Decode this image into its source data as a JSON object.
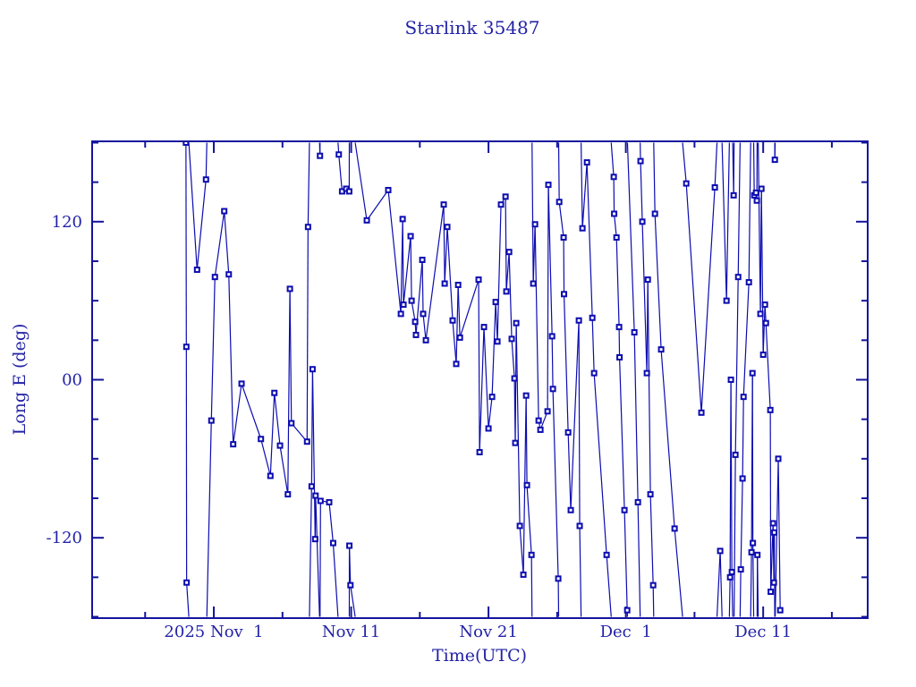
{
  "colors": {
    "text": "#2323a8",
    "data": "#0c0cb0",
    "frame": "#14149e",
    "background": "#ffffff"
  },
  "chart_data": {
    "type": "line",
    "title": "Starlink 35487",
    "xlabel": "Time(UTC)",
    "ylabel": "Long E (deg)",
    "x_unit": "days since 2025 Nov 1 00:00 UTC",
    "xlim": [
      -8.86,
      47.61
    ],
    "ylim": [
      -181,
      181
    ],
    "grid": false,
    "legend": "none",
    "marker": "open-square",
    "line_style": "solid",
    "wrap_at": [
      -180,
      180
    ],
    "x_major_ticks": [
      {
        "day": 0,
        "label": "2025 Nov  1"
      },
      {
        "day": 10,
        "label": "Nov 11"
      },
      {
        "day": 20,
        "label": "Nov 21"
      },
      {
        "day": 30,
        "label": "Dec  1"
      },
      {
        "day": 40,
        "label": "Dec 11"
      }
    ],
    "x_minor_tick_days": [
      -5,
      5,
      15,
      25,
      35,
      45
    ],
    "y_major_ticks": [
      {
        "value": 120,
        "label": "120"
      },
      {
        "value": 0,
        "label": "00"
      },
      {
        "value": -120,
        "label": "-120"
      }
    ],
    "y_minor_tick_step": 30,
    "points": [
      [
        -2.03,
        180
      ],
      [
        -2.0,
        25
      ],
      [
        -1.98,
        -154
      ],
      [
        -1.22,
        83.5
      ],
      [
        -0.57,
        152
      ],
      [
        -0.18,
        -31
      ],
      [
        0.08,
        78
      ],
      [
        0.76,
        128
      ],
      [
        1.09,
        80
      ],
      [
        1.41,
        -49
      ],
      [
        2.02,
        -3
      ],
      [
        3.43,
        -45
      ],
      [
        4.12,
        -73
      ],
      [
        4.41,
        -10
      ],
      [
        4.82,
        -50
      ],
      [
        5.39,
        -87
      ],
      [
        5.54,
        69
      ],
      [
        5.65,
        -33
      ],
      [
        6.79,
        -47
      ],
      [
        6.86,
        116
      ],
      [
        7.12,
        -81
      ],
      [
        7.19,
        8
      ],
      [
        7.38,
        -121
      ],
      [
        7.41,
        -88
      ],
      [
        7.73,
        170
      ],
      [
        7.77,
        -92
      ],
      [
        8.4,
        -93
      ],
      [
        8.69,
        -124
      ],
      [
        9.1,
        171
      ],
      [
        9.34,
        143
      ],
      [
        9.64,
        145
      ],
      [
        9.86,
        143
      ],
      [
        9.87,
        -126
      ],
      [
        9.95,
        -156
      ],
      [
        11.14,
        121
      ],
      [
        12.7,
        144
      ],
      [
        13.62,
        50
      ],
      [
        13.75,
        122
      ],
      [
        13.81,
        57
      ],
      [
        14.33,
        109
      ],
      [
        14.4,
        60
      ],
      [
        14.66,
        44
      ],
      [
        14.72,
        34
      ],
      [
        15.18,
        91
      ],
      [
        15.24,
        50
      ],
      [
        15.44,
        30
      ],
      [
        16.74,
        133
      ],
      [
        16.81,
        73
      ],
      [
        17.0,
        116
      ],
      [
        17.39,
        45
      ],
      [
        17.65,
        12
      ],
      [
        17.79,
        72
      ],
      [
        17.92,
        32
      ],
      [
        19.28,
        76
      ],
      [
        19.35,
        -55
      ],
      [
        19.67,
        40
      ],
      [
        20.0,
        -37
      ],
      [
        20.26,
        -13
      ],
      [
        20.52,
        59
      ],
      [
        20.65,
        29
      ],
      [
        20.91,
        133
      ],
      [
        21.24,
        139
      ],
      [
        21.3,
        67
      ],
      [
        21.5,
        97
      ],
      [
        21.69,
        31
      ],
      [
        21.89,
        1
      ],
      [
        21.95,
        -48
      ],
      [
        22.02,
        43
      ],
      [
        22.28,
        -111
      ],
      [
        22.54,
        -148
      ],
      [
        22.74,
        -12
      ],
      [
        22.8,
        -80
      ],
      [
        23.13,
        -133
      ],
      [
        23.26,
        73
      ],
      [
        23.39,
        118
      ],
      [
        23.65,
        -31
      ],
      [
        23.78,
        -38
      ],
      [
        24.3,
        -24
      ],
      [
        24.36,
        148
      ],
      [
        24.63,
        33
      ],
      [
        24.69,
        -7
      ],
      [
        25.08,
        -151
      ],
      [
        25.15,
        135
      ],
      [
        25.47,
        108
      ],
      [
        25.5,
        65
      ],
      [
        25.8,
        -40
      ],
      [
        25.99,
        -99
      ],
      [
        26.58,
        45
      ],
      [
        26.64,
        -111
      ],
      [
        26.84,
        115
      ],
      [
        27.17,
        165
      ],
      [
        27.56,
        47
      ],
      [
        27.69,
        5
      ],
      [
        28.6,
        -133
      ],
      [
        29.12,
        154
      ],
      [
        29.15,
        126
      ],
      [
        29.32,
        108
      ],
      [
        29.51,
        40
      ],
      [
        29.54,
        17
      ],
      [
        29.9,
        -99
      ],
      [
        30.1,
        -175
      ],
      [
        30.62,
        36
      ],
      [
        30.88,
        -93
      ],
      [
        31.07,
        166
      ],
      [
        31.2,
        120
      ],
      [
        31.53,
        5
      ],
      [
        31.6,
        76
      ],
      [
        31.79,
        -87
      ],
      [
        31.99,
        -156
      ],
      [
        32.12,
        126
      ],
      [
        32.57,
        23
      ],
      [
        33.55,
        -113
      ],
      [
        34.4,
        149
      ],
      [
        35.5,
        -25
      ],
      [
        36.48,
        146
      ],
      [
        36.87,
        -130
      ],
      [
        37.33,
        60
      ],
      [
        37.59,
        -150
      ],
      [
        37.65,
        0
      ],
      [
        37.72,
        -146
      ],
      [
        37.85,
        140
      ],
      [
        37.98,
        -57
      ],
      [
        38.18,
        78
      ],
      [
        38.37,
        -144
      ],
      [
        38.5,
        -75
      ],
      [
        38.57,
        -13
      ],
      [
        38.96,
        74
      ],
      [
        39.15,
        -131
      ],
      [
        39.22,
        5
      ],
      [
        39.25,
        -124
      ],
      [
        39.35,
        140
      ],
      [
        39.48,
        142
      ],
      [
        39.54,
        136
      ],
      [
        39.58,
        -133
      ],
      [
        39.8,
        50
      ],
      [
        39.87,
        145
      ],
      [
        40.0,
        19
      ],
      [
        40.13,
        57
      ],
      [
        40.2,
        43
      ],
      [
        40.52,
        -23
      ],
      [
        40.55,
        -161
      ],
      [
        40.72,
        -109
      ],
      [
        40.78,
        -154
      ],
      [
        40.81,
        -116
      ],
      [
        40.85,
        167
      ],
      [
        41.1,
        -60
      ],
      [
        41.24,
        -175
      ]
    ]
  }
}
